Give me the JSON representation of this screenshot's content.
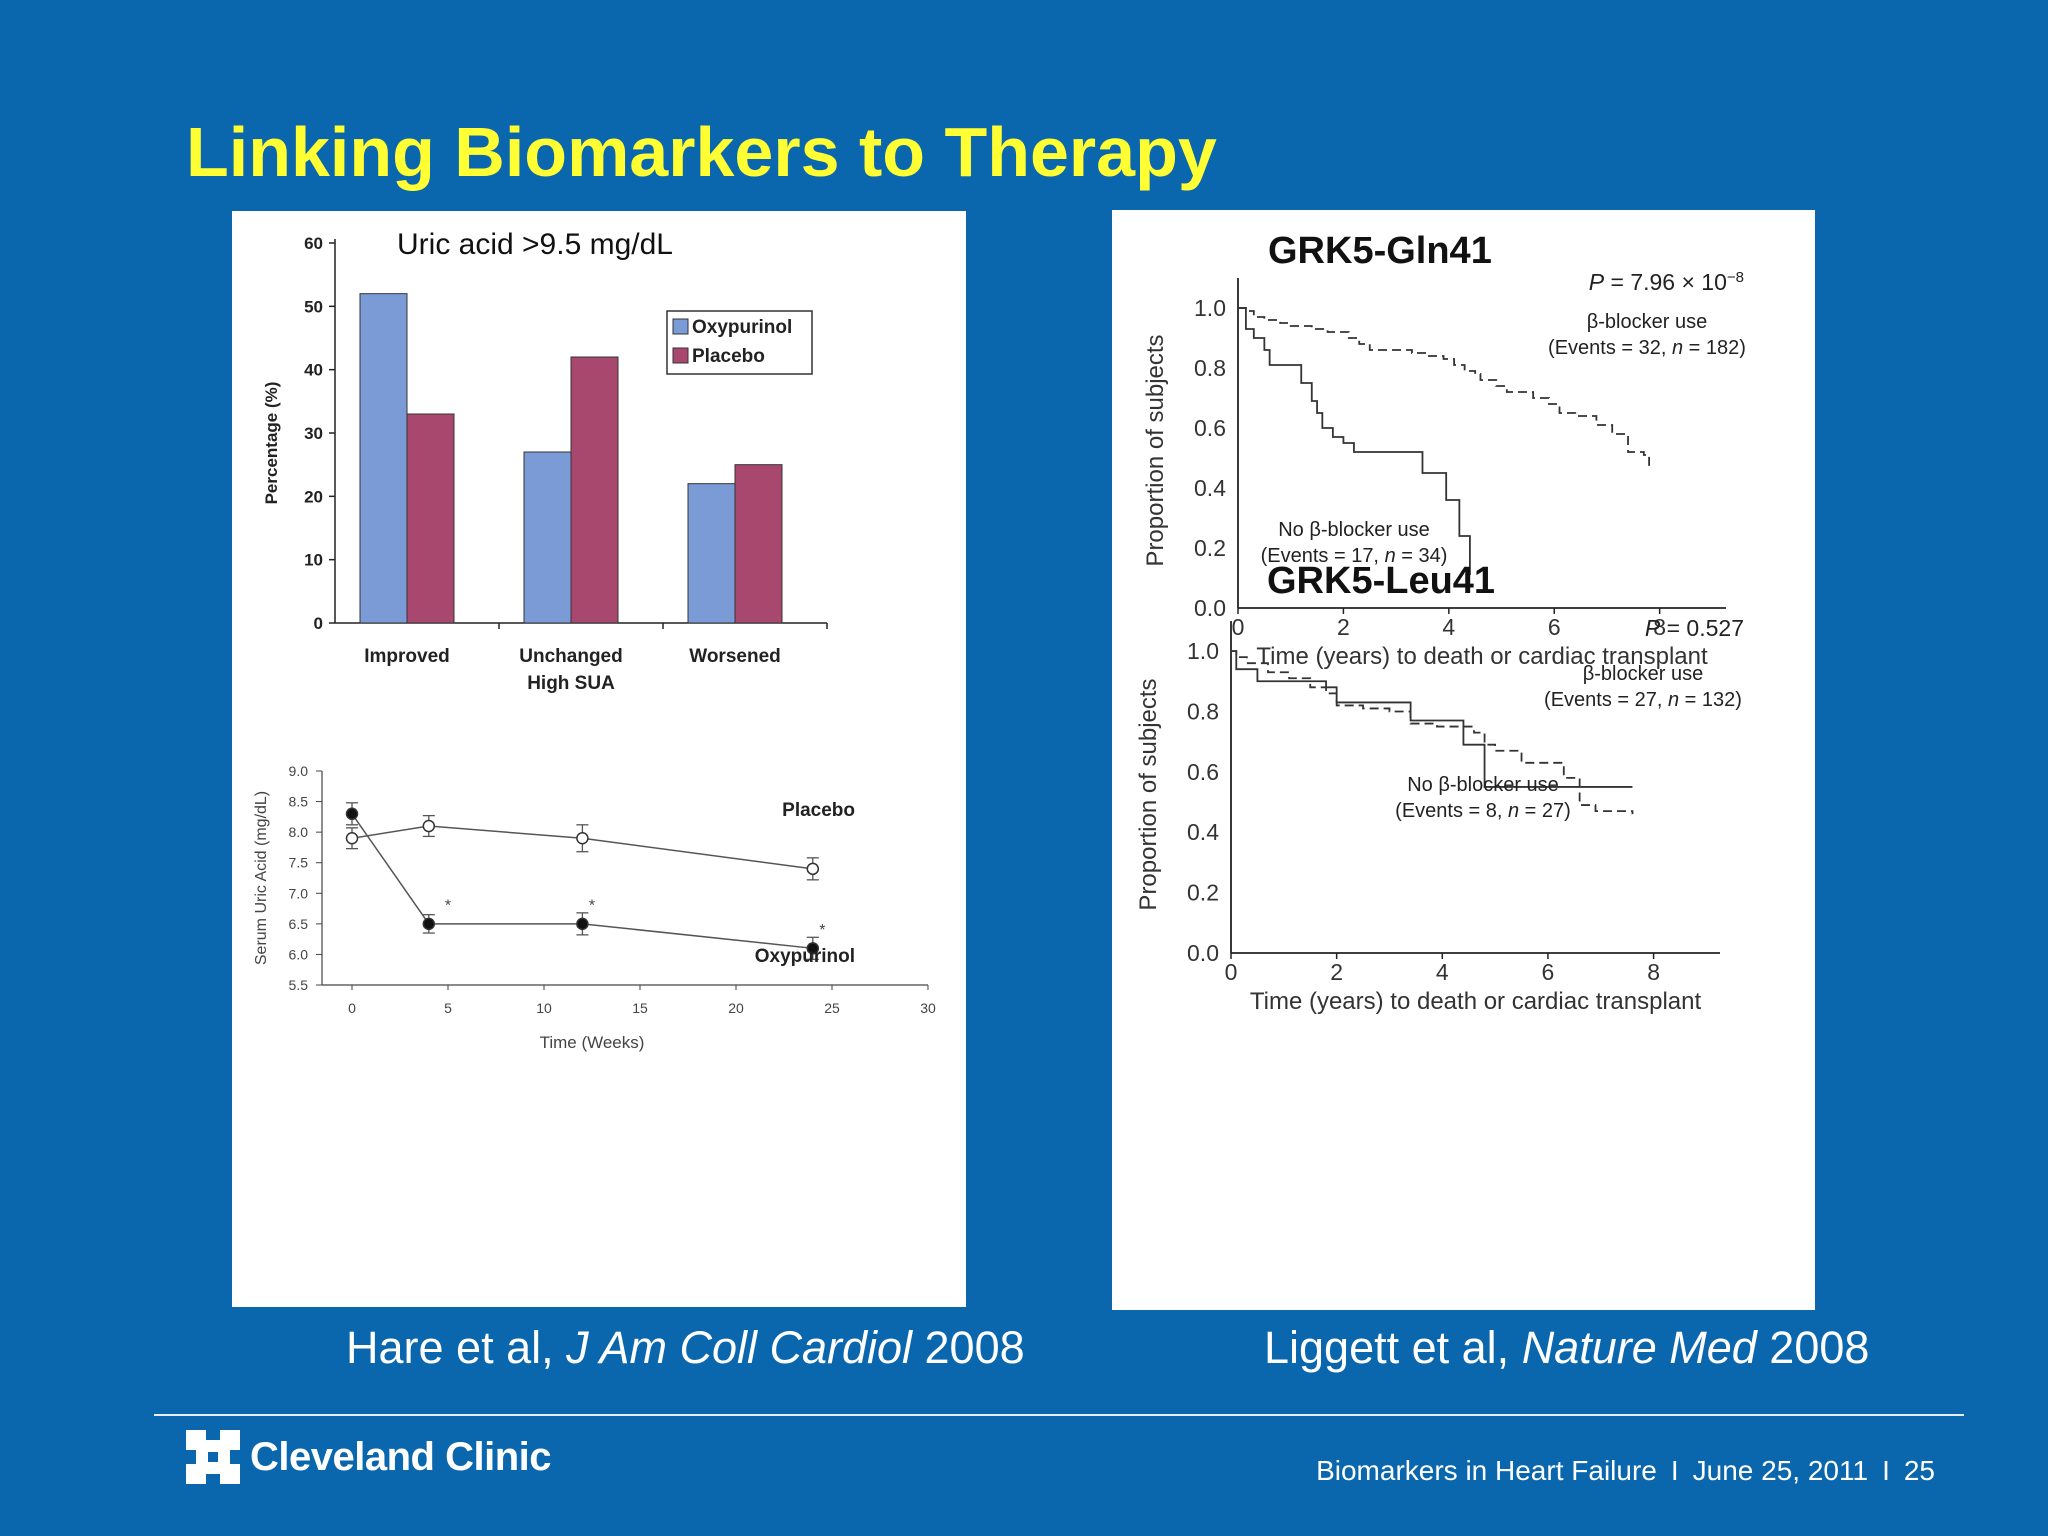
{
  "slide": {
    "title": "Linking Biomarkers to Therapy",
    "citation_left": {
      "authors": "Hare et al, ",
      "journal": "J Am Coll Cardiol",
      "year": " 2008"
    },
    "citation_right": {
      "authors": "Liggett et al, ",
      "journal": "Nature Med",
      "year": " 2008"
    },
    "logo_text": "Cleveland Clinic",
    "footer": {
      "topic": "Biomarkers in Heart Failure",
      "date": "June 25, 2011",
      "page": "25",
      "separator": "I"
    },
    "colors": {
      "background": "#0b67ad",
      "title": "#ffff33",
      "oxypurinol": "#7b9bd6",
      "placebo": "#a8486e"
    }
  },
  "chart_data": [
    {
      "id": "uric-bar",
      "type": "bar",
      "title": "Uric acid >9.5 mg/dL",
      "xlabel": "High SUA",
      "ylabel": "Percentage (%)",
      "categories": [
        "Improved",
        "Unchanged",
        "Worsened"
      ],
      "series": [
        {
          "name": "Oxypurinol",
          "values": [
            52,
            27,
            22
          ],
          "color": "#7b9bd6"
        },
        {
          "name": "Placebo",
          "values": [
            33,
            42,
            25
          ],
          "color": "#a8486e"
        }
      ],
      "ylim": [
        0,
        60
      ],
      "yticks": [
        "0",
        "10",
        "20",
        "30",
        "40",
        "50",
        "60"
      ],
      "legend": "top-right",
      "grid": false
    },
    {
      "id": "uric-line",
      "type": "line",
      "xlabel": "Time (Weeks)",
      "ylabel": "Serum Uric Acid (mg/dL)",
      "xlim": [
        0,
        30
      ],
      "ylim": [
        5.5,
        9.0
      ],
      "xticks": [
        "0",
        "5",
        "10",
        "15",
        "20",
        "25",
        "30"
      ],
      "yticks": [
        "5.5",
        "6.0",
        "6.5",
        "7.0",
        "7.5",
        "8.0",
        "8.5",
        "9.0"
      ],
      "series": [
        {
          "name": "Placebo",
          "x": [
            0,
            4,
            12,
            24
          ],
          "y": [
            7.9,
            8.1,
            7.9,
            7.4
          ],
          "err": [
            0.17,
            0.17,
            0.22,
            0.18
          ],
          "marker": "open"
        },
        {
          "name": "Oxypurinol",
          "x": [
            0,
            4,
            12,
            24
          ],
          "y": [
            8.3,
            6.5,
            6.5,
            6.1
          ],
          "err": [
            0.18,
            0.15,
            0.18,
            0.18
          ],
          "marker": "filled"
        }
      ],
      "annotations": [
        {
          "x": 5,
          "y": 6.85,
          "text": "*"
        },
        {
          "x": 12.5,
          "y": 6.85,
          "text": "*"
        },
        {
          "x": 24.5,
          "y": 6.45,
          "text": "*"
        }
      ],
      "grid": false
    },
    {
      "id": "km-gln41",
      "type": "line",
      "title": "GRK5-Gln41",
      "pvalue": {
        "prefix": "P",
        "text": " = 7.96 × 10",
        "exp": "−8"
      },
      "xlabel": "Time (years) to death or cardiac transplant",
      "ylabel": "Proportion of subjects",
      "xlim": [
        0,
        8.5
      ],
      "ylim": [
        0,
        1.05
      ],
      "xticks": [
        "0",
        "2",
        "4",
        "6",
        "8"
      ],
      "yticks": [
        "0.0",
        "0.2",
        "0.4",
        "0.6",
        "0.8",
        "1.0"
      ],
      "series": [
        {
          "name": "β-blocker use",
          "label2": "(Events = 32, n = 182)",
          "style": "dashed",
          "x": [
            0,
            0.15,
            0.3,
            0.5,
            0.8,
            1.0,
            1.4,
            1.7,
            2.1,
            2.3,
            2.5,
            2.9,
            3.3,
            3.6,
            3.9,
            4.1,
            4.3,
            4.5,
            4.6,
            4.9,
            5.1,
            5.3,
            5.6,
            5.9,
            6.1,
            6.4,
            6.8,
            7.1,
            7.4,
            7.7,
            7.8
          ],
          "y": [
            1.0,
            0.99,
            0.97,
            0.96,
            0.95,
            0.94,
            0.93,
            0.92,
            0.9,
            0.88,
            0.86,
            0.86,
            0.85,
            0.84,
            0.83,
            0.81,
            0.79,
            0.78,
            0.76,
            0.74,
            0.72,
            0.72,
            0.7,
            0.68,
            0.65,
            0.64,
            0.61,
            0.58,
            0.52,
            0.51,
            0.47
          ]
        },
        {
          "name": "No β-blocker use",
          "label2": "(Events = 17, n = 34)",
          "style": "solid",
          "x": [
            0,
            0.15,
            0.3,
            0.5,
            0.6,
            1.1,
            1.2,
            1.4,
            1.5,
            1.6,
            1.8,
            2.0,
            2.2,
            2.5,
            3.5,
            3.8,
            3.95,
            4.2,
            4.4
          ],
          "y": [
            1.0,
            0.93,
            0.9,
            0.86,
            0.81,
            0.81,
            0.75,
            0.69,
            0.65,
            0.6,
            0.57,
            0.55,
            0.52,
            0.52,
            0.45,
            0.45,
            0.36,
            0.24,
            0.11
          ]
        }
      ],
      "grid": false
    },
    {
      "id": "km-leu41",
      "type": "line",
      "title": "GRK5-Leu41",
      "pvalue": {
        "prefix": "P",
        "text": " = 0.527",
        "exp": ""
      },
      "xlabel": "Time (years) to death or cardiac transplant",
      "ylabel": "Proportion of subjects",
      "xlim": [
        0,
        8.5
      ],
      "ylim": [
        0,
        1.05
      ],
      "xticks": [
        "0",
        "2",
        "4",
        "6",
        "8"
      ],
      "yticks": [
        "0.0",
        "0.2",
        "0.4",
        "0.6",
        "0.8",
        "1.0"
      ],
      "series": [
        {
          "name": "β-blocker use",
          "label2": "(Events = 27, n = 132)",
          "style": "dashed",
          "x": [
            0,
            0.1,
            0.3,
            0.7,
            1.1,
            1.5,
            1.8,
            2.0,
            2.5,
            3.0,
            3.4,
            3.9,
            4.6,
            4.8,
            5.0,
            5.5,
            6.3,
            6.6,
            6.9,
            7.6
          ],
          "y": [
            1.0,
            0.98,
            0.96,
            0.93,
            0.91,
            0.88,
            0.86,
            0.82,
            0.81,
            0.8,
            0.76,
            0.75,
            0.73,
            0.69,
            0.67,
            0.63,
            0.58,
            0.49,
            0.47,
            0.46
          ]
        },
        {
          "name": "No β-blocker use",
          "label2": "(Events = 8, n = 27)",
          "style": "solid",
          "x": [
            0,
            0.1,
            0.5,
            1.8,
            2.0,
            2.9,
            3.4,
            4.4,
            4.8,
            7.6
          ],
          "y": [
            1.0,
            0.94,
            0.9,
            0.88,
            0.83,
            0.83,
            0.77,
            0.69,
            0.55,
            0.55
          ]
        }
      ],
      "grid": false
    }
  ]
}
